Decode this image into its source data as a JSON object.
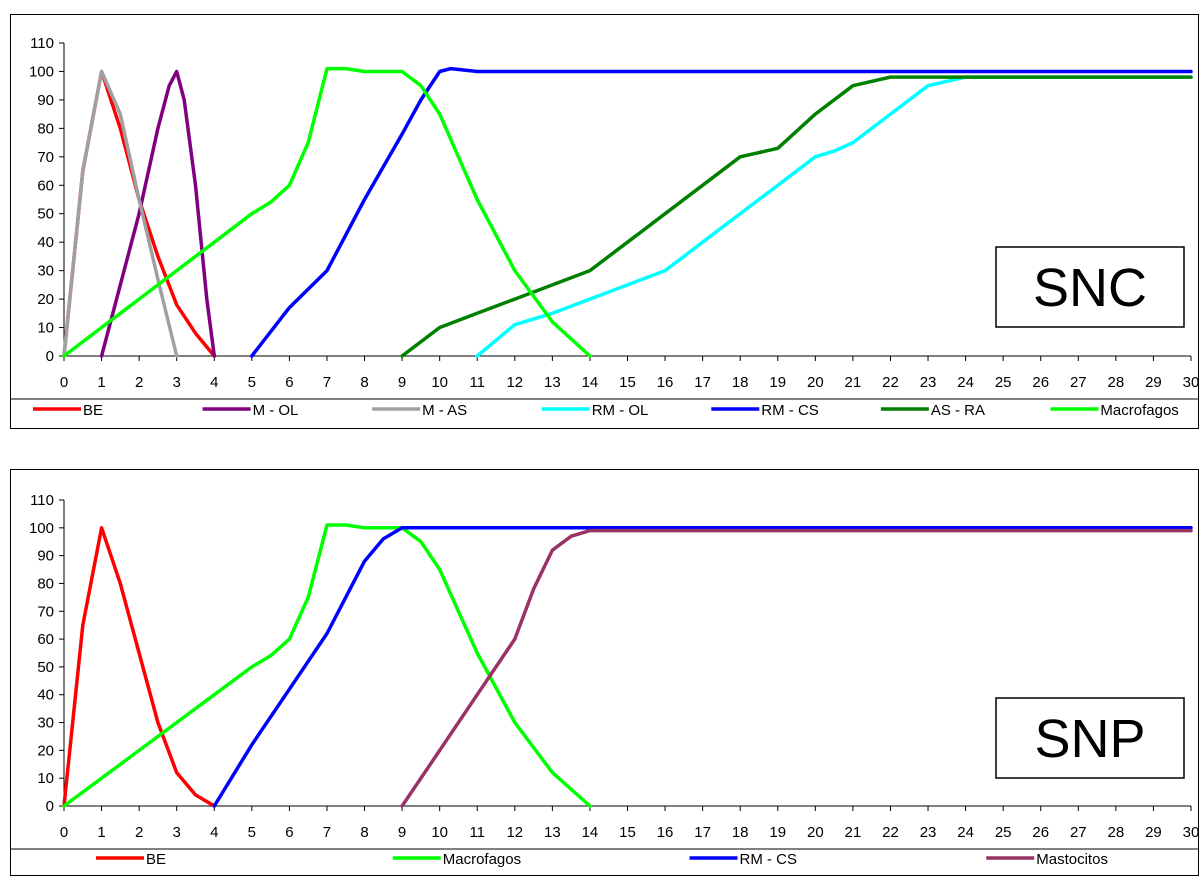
{
  "chart_data": [
    {
      "type": "line",
      "title": "",
      "xlabel": "",
      "ylabel": "",
      "xlim": [
        0,
        30
      ],
      "ylim": [
        0,
        110
      ],
      "x_ticks": [
        "0",
        "1",
        "2",
        "3",
        "4",
        "5",
        "6",
        "7",
        "8",
        "9",
        "10",
        "11",
        "12",
        "13",
        "14",
        "15",
        "16",
        "17",
        "18",
        "19",
        "20",
        "21",
        "22",
        "23",
        "24",
        "25",
        "26",
        "27",
        "28",
        "29",
        "30"
      ],
      "y_ticks": [
        "0",
        "10",
        "20",
        "30",
        "40",
        "50",
        "60",
        "70",
        "80",
        "90",
        "100",
        "110"
      ],
      "grid": false,
      "legend_position": "bottom",
      "inset_label": "SNC",
      "series": [
        {
          "name": "BE",
          "color": "#ff0000",
          "x": [
            0,
            0.5,
            1,
            1.5,
            2,
            2.5,
            3,
            3.5,
            4
          ],
          "y": [
            0,
            65,
            100,
            80,
            55,
            35,
            18,
            8,
            0
          ]
        },
        {
          "name": "M - OL",
          "color": "#800080",
          "x": [
            1,
            1.5,
            2,
            2.5,
            2.8,
            3,
            3.2,
            3.5,
            3.8,
            4
          ],
          "y": [
            0,
            25,
            50,
            80,
            95,
            100,
            90,
            60,
            20,
            0
          ]
        },
        {
          "name": "M - AS",
          "color": "#a0a0a0",
          "x": [
            0,
            0.5,
            1,
            1.5,
            2,
            2.5,
            3
          ],
          "y": [
            0,
            65,
            100,
            85,
            55,
            27,
            0
          ]
        },
        {
          "name": "RM - OL",
          "color": "#00ffff",
          "x": [
            11,
            12,
            13,
            14,
            15,
            16,
            17,
            18,
            19,
            20,
            20.5,
            21,
            22,
            23,
            24,
            30
          ],
          "y": [
            0,
            11,
            15,
            20,
            25,
            30,
            40,
            50,
            60,
            70,
            72,
            75,
            85,
            95,
            98,
            98
          ]
        },
        {
          "name": "RM - CS",
          "color": "#0000ff",
          "x": [
            5,
            6,
            7,
            8,
            9,
            9.5,
            10,
            10.3,
            11,
            30
          ],
          "y": [
            0,
            17,
            30,
            55,
            78,
            90,
            100,
            101,
            100,
            100
          ]
        },
        {
          "name": "AS - RA",
          "color": "#008000",
          "x": [
            9,
            10,
            11,
            12,
            13,
            14,
            15,
            16,
            17,
            18,
            19,
            20,
            21,
            22,
            30
          ],
          "y": [
            0,
            10,
            15,
            20,
            25,
            30,
            40,
            50,
            60,
            70,
            73,
            85,
            95,
            98,
            98
          ]
        },
        {
          "name": "Macrofagos",
          "color": "#00ff00",
          "x": [
            0,
            1,
            2,
            3,
            4,
            5,
            5.5,
            6,
            6.5,
            7,
            7.5,
            8,
            9,
            9.5,
            10,
            10.5,
            11,
            12,
            13,
            14
          ],
          "y": [
            0,
            10,
            20,
            30,
            40,
            50,
            54,
            60,
            75,
            101,
            101,
            100,
            100,
            95,
            85,
            70,
            55,
            30,
            12,
            0
          ]
        }
      ]
    },
    {
      "type": "line",
      "title": "",
      "xlabel": "",
      "ylabel": "",
      "xlim": [
        0,
        30
      ],
      "ylim": [
        0,
        110
      ],
      "x_ticks": [
        "0",
        "1",
        "2",
        "3",
        "4",
        "5",
        "6",
        "7",
        "8",
        "9",
        "10",
        "11",
        "12",
        "13",
        "14",
        "15",
        "16",
        "17",
        "18",
        "19",
        "20",
        "21",
        "22",
        "23",
        "24",
        "25",
        "26",
        "27",
        "28",
        "29",
        "30"
      ],
      "y_ticks": [
        "0",
        "10",
        "20",
        "30",
        "40",
        "50",
        "60",
        "70",
        "80",
        "90",
        "100",
        "110"
      ],
      "grid": false,
      "legend_position": "bottom",
      "inset_label": "SNP",
      "series": [
        {
          "name": "BE",
          "color": "#ff0000",
          "x": [
            0,
            0.5,
            1,
            1.5,
            2,
            2.5,
            3,
            3.5,
            4
          ],
          "y": [
            0,
            65,
            100,
            80,
            55,
            30,
            12,
            4,
            0
          ]
        },
        {
          "name": "Macrofagos",
          "color": "#00ff00",
          "x": [
            0,
            1,
            2,
            3,
            4,
            5,
            5.5,
            6,
            6.5,
            7,
            7.5,
            8,
            9,
            9.5,
            10,
            10.5,
            11,
            12,
            13,
            14
          ],
          "y": [
            0,
            10,
            20,
            30,
            40,
            50,
            54,
            60,
            75,
            101,
            101,
            100,
            100,
            95,
            85,
            70,
            55,
            30,
            12,
            0
          ]
        },
        {
          "name": "RM - CS",
          "color": "#0000ff",
          "x": [
            4,
            5,
            6,
            7,
            8,
            8.5,
            9,
            9.5,
            10,
            30
          ],
          "y": [
            0,
            22,
            42,
            62,
            88,
            96,
            100,
            100,
            100,
            100
          ]
        },
        {
          "name": "Mastocitos",
          "color": "#993366",
          "x": [
            9,
            10,
            11,
            12,
            12.5,
            13,
            13.5,
            14,
            14.5,
            30
          ],
          "y": [
            0,
            20,
            40,
            60,
            78,
            92,
            97,
            99,
            99,
            99
          ]
        }
      ]
    }
  ]
}
